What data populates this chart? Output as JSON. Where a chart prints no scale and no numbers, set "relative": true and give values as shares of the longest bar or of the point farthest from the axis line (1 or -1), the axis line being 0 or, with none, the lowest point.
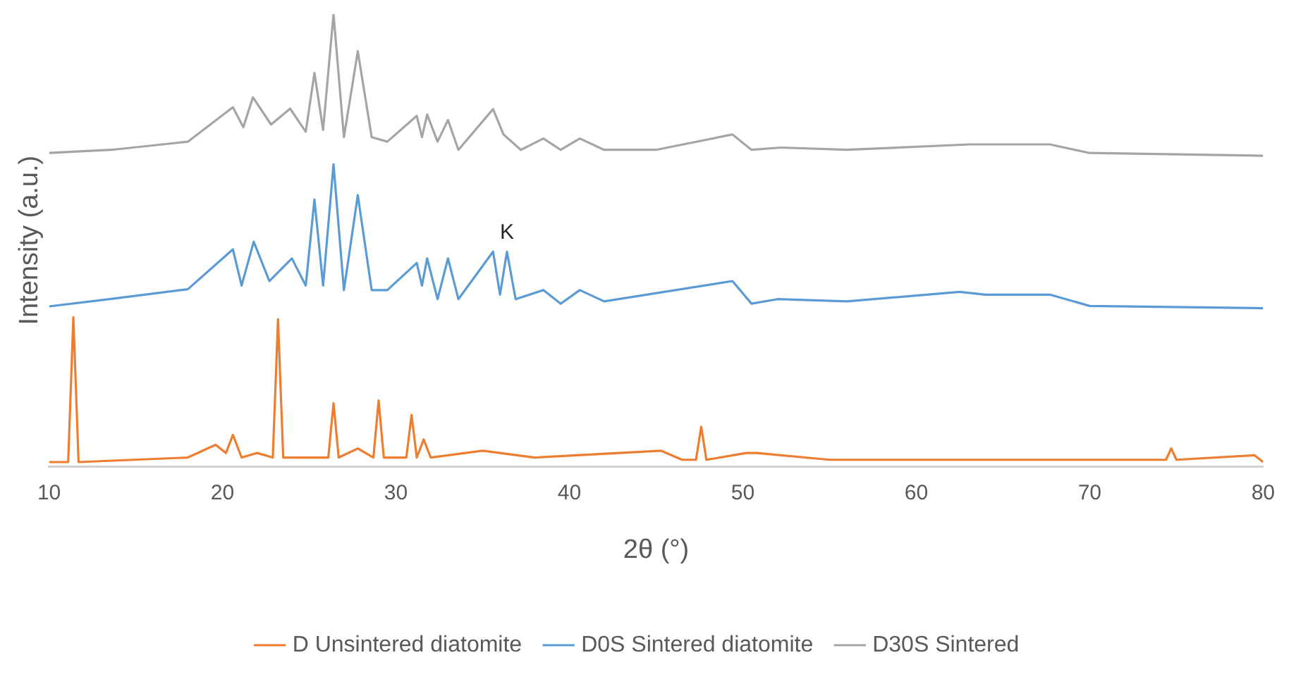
{
  "chart_data": {
    "type": "line",
    "relative": true,
    "xlabel": "2θ (°)",
    "ylabel": "Intensity (a.u.)",
    "xlim": [
      10,
      80
    ],
    "xticks": [
      10,
      20,
      30,
      40,
      50,
      60,
      70,
      80
    ],
    "grid": false,
    "legend": "bottom",
    "marker": "none",
    "line_style": "solid",
    "annotations": [
      {
        "text": "K",
        "x": 36.4,
        "y": 0.475
      }
    ],
    "series": [
      {
        "name": "D Unsintered diatomite",
        "color": "#ed7d31",
        "x": [
          10,
          11.1,
          11.4,
          11.7,
          18,
          19.6,
          20.2,
          20.6,
          21.1,
          22,
          22.9,
          23.2,
          23.5,
          26.1,
          26.4,
          26.7,
          27.8,
          28.7,
          29,
          29.3,
          30.6,
          30.9,
          31.2,
          31.6,
          32,
          33,
          35,
          38,
          45.3,
          46.5,
          47.3,
          47.6,
          47.9,
          50.2,
          50.8,
          55,
          74.4,
          74.7,
          75,
          79.5,
          80
        ],
        "values": [
          0.01,
          0.01,
          0.33,
          0.01,
          0.02,
          0.048,
          0.03,
          0.07,
          0.02,
          0.03,
          0.02,
          0.326,
          0.02,
          0.02,
          0.14,
          0.02,
          0.04,
          0.02,
          0.146,
          0.02,
          0.02,
          0.114,
          0.02,
          0.06,
          0.02,
          0.025,
          0.035,
          0.02,
          0.035,
          0.015,
          0.015,
          0.088,
          0.015,
          0.03,
          0.03,
          0.015,
          0.015,
          0.04,
          0.015,
          0.025,
          0.01
        ]
      },
      {
        "name": "D0S Sintered diatomite",
        "color": "#5b9bd5",
        "x": [
          10,
          13.5,
          18,
          20.6,
          21.1,
          21.8,
          22.7,
          24,
          24.8,
          25.3,
          25.8,
          26.4,
          27,
          27.8,
          28.6,
          29.5,
          31.2,
          31.5,
          31.8,
          32.4,
          33,
          33.6,
          35.6,
          36,
          36.4,
          36.9,
          38.5,
          39.5,
          40.6,
          42,
          49.4,
          50.5,
          52,
          56,
          62.5,
          64,
          67.7,
          70,
          80
        ],
        "values": [
          0.354,
          0.37,
          0.392,
          0.48,
          0.4,
          0.497,
          0.41,
          0.46,
          0.4,
          0.59,
          0.4,
          0.668,
          0.39,
          0.6,
          0.39,
          0.39,
          0.45,
          0.4,
          0.46,
          0.37,
          0.46,
          0.37,
          0.475,
          0.38,
          0.475,
          0.37,
          0.39,
          0.36,
          0.39,
          0.365,
          0.41,
          0.36,
          0.37,
          0.365,
          0.386,
          0.38,
          0.38,
          0.355,
          0.35
        ]
      },
      {
        "name": "D30S Sintered",
        "color": "#a5a5a5",
        "x": [
          10,
          13.6,
          18,
          20.6,
          21.2,
          21.75,
          22.8,
          23.9,
          24.8,
          25.3,
          25.8,
          26.4,
          27,
          27.8,
          28.6,
          29.5,
          31.2,
          31.5,
          31.8,
          32.4,
          33,
          33.6,
          35.6,
          36.2,
          37.2,
          38.5,
          39.5,
          40.6,
          42,
          45,
          49.4,
          50.5,
          52.2,
          56,
          63.1,
          67.7,
          70,
          80
        ],
        "values": [
          0.693,
          0.7,
          0.718,
          0.794,
          0.75,
          0.816,
          0.756,
          0.791,
          0.74,
          0.87,
          0.744,
          1,
          0.728,
          0.918,
          0.728,
          0.718,
          0.775,
          0.728,
          0.778,
          0.718,
          0.766,
          0.7,
          0.79,
          0.734,
          0.7,
          0.725,
          0.7,
          0.725,
          0.7,
          0.7,
          0.734,
          0.7,
          0.705,
          0.7,
          0.712,
          0.712,
          0.693,
          0.687
        ]
      }
    ]
  }
}
